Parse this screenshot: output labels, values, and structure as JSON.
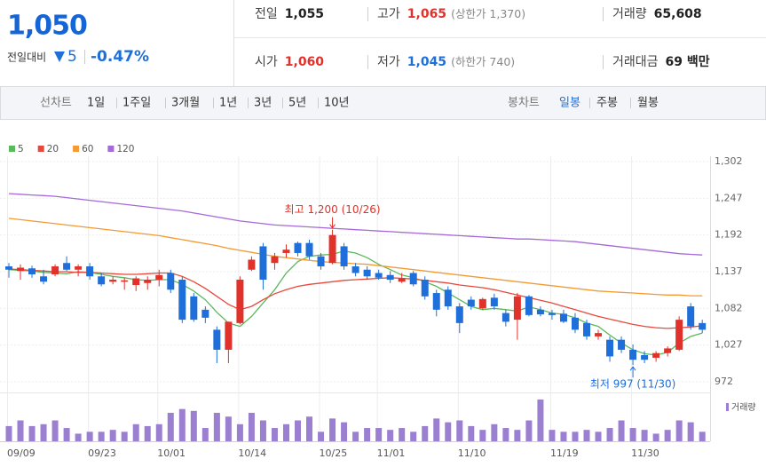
{
  "header": {
    "price": "1,050",
    "change_label": "전일대비",
    "change": "5",
    "change_pct": "-0.47%",
    "stats": [
      {
        "label": "전일",
        "value": "1,055",
        "color": "#222"
      },
      {
        "label": "고가",
        "value": "1,065",
        "note": "(상한가 1,370)",
        "color": "#e0322b"
      },
      {
        "label": "거래량",
        "value": "65,608",
        "color": "#222"
      },
      {
        "label": "시가",
        "value": "1,060",
        "color": "#e0322b"
      },
      {
        "label": "저가",
        "value": "1,045",
        "note": "(하한가 740)",
        "color": "#1e6fd9"
      },
      {
        "label": "거래대금",
        "value": "69 백만",
        "color": "#222"
      }
    ]
  },
  "toolbar": {
    "line_chart": "선차트",
    "line_periods": [
      "1일",
      "1주일",
      "3개월",
      "1년",
      "3년",
      "5년",
      "10년"
    ],
    "candle_chart": "봉차트",
    "candle_periods": [
      "일봉",
      "주봉",
      "월봉"
    ],
    "selected": 0
  },
  "chart_data": {
    "type": "candlestick",
    "categories": [
      "09/09",
      null,
      null,
      null,
      null,
      null,
      null,
      "09/23",
      null,
      null,
      null,
      null,
      null,
      "10/01",
      null,
      null,
      null,
      null,
      null,
      null,
      "10/14",
      null,
      null,
      null,
      null,
      null,
      null,
      "10/25",
      null,
      null,
      null,
      null,
      "11/01",
      null,
      null,
      null,
      null,
      null,
      null,
      "11/10",
      null,
      null,
      null,
      null,
      null,
      null,
      null,
      "11/19",
      null,
      null,
      null,
      null,
      null,
      null,
      "11/30",
      null,
      null,
      null,
      null,
      null,
      null
    ],
    "open": [
      1145,
      1138,
      1142,
      1130,
      1133,
      1150,
      1140,
      1145,
      1130,
      1122,
      1122,
      1117,
      1120,
      1125,
      1135,
      1125,
      1100,
      1080,
      1050,
      1020,
      1060,
      1140,
      1175,
      1150,
      1165,
      1180,
      1180,
      1160,
      1150,
      1175,
      1145,
      1140,
      1135,
      1132,
      1122,
      1135,
      1125,
      1105,
      1110,
      1085,
      1095,
      1082,
      1098,
      1075,
      1065,
      1100,
      1080,
      1075,
      1074,
      1068,
      1060,
      1040,
      1035,
      1035,
      1020,
      1012,
      1008,
      1015,
      1020,
      1085,
      1060
    ],
    "high": [
      1150,
      1148,
      1146,
      1140,
      1148,
      1160,
      1148,
      1150,
      1135,
      1130,
      1128,
      1130,
      1130,
      1140,
      1140,
      1130,
      1105,
      1085,
      1055,
      1062,
      1130,
      1160,
      1180,
      1165,
      1178,
      1182,
      1185,
      1165,
      1200,
      1180,
      1150,
      1145,
      1140,
      1138,
      1135,
      1138,
      1130,
      1110,
      1115,
      1090,
      1100,
      1098,
      1104,
      1080,
      1105,
      1102,
      1085,
      1080,
      1080,
      1075,
      1065,
      1050,
      1040,
      1040,
      1028,
      1018,
      1018,
      1025,
      1070,
      1090,
      1065
    ],
    "low": [
      1128,
      1125,
      1128,
      1118,
      1130,
      1138,
      1130,
      1125,
      1115,
      1118,
      1110,
      1108,
      1110,
      1115,
      1105,
      1060,
      1062,
      1060,
      1000,
      1000,
      1058,
      1138,
      1110,
      1140,
      1158,
      1160,
      1155,
      1140,
      1148,
      1140,
      1130,
      1125,
      1125,
      1120,
      1120,
      1115,
      1095,
      1070,
      1080,
      1045,
      1080,
      1080,
      1080,
      1055,
      1035,
      1070,
      1070,
      1065,
      1060,
      1045,
      1035,
      1035,
      1002,
      1015,
      997,
      1000,
      1002,
      1010,
      1018,
      1050,
      1045
    ],
    "close": [
      1140,
      1143,
      1133,
      1122,
      1145,
      1140,
      1145,
      1130,
      1118,
      1125,
      1124,
      1127,
      1125,
      1132,
      1110,
      1065,
      1065,
      1068,
      1020,
      1062,
      1125,
      1155,
      1125,
      1160,
      1170,
      1165,
      1160,
      1145,
      1192,
      1145,
      1135,
      1130,
      1128,
      1125,
      1127,
      1118,
      1100,
      1080,
      1085,
      1060,
      1085,
      1096,
      1085,
      1062,
      1100,
      1072,
      1073,
      1072,
      1062,
      1050,
      1040,
      1045,
      1010,
      1020,
      1005,
      1005,
      1015,
      1022,
      1065,
      1055,
      1050
    ],
    "up_color": "#e0322b",
    "down_color": "#1e6fd9",
    "series": [
      {
        "name": "5",
        "color": "#5cb85c",
        "values": [
          1140,
          1139,
          1138,
          1136,
          1135,
          1134,
          1137,
          1136,
          1133,
          1130,
          1128,
          1125,
          1124,
          1125,
          1125,
          1118,
          1108,
          1095,
          1076,
          1060,
          1055,
          1070,
          1090,
          1110,
          1135,
          1152,
          1160,
          1162,
          1163,
          1168,
          1165,
          1158,
          1148,
          1140,
          1132,
          1128,
          1122,
          1115,
          1105,
          1095,
          1085,
          1080,
          1082,
          1080,
          1078,
          1084,
          1080,
          1075,
          1073,
          1068,
          1060,
          1055,
          1042,
          1030,
          1020,
          1014,
          1012,
          1016,
          1030,
          1040,
          1045
        ]
      },
      {
        "name": "20",
        "color": "#e8483c",
        "values": [
          1141,
          1140,
          1139,
          1138,
          1137,
          1137,
          1136,
          1136,
          1135,
          1134,
          1133,
          1133,
          1134,
          1135,
          1135,
          1130,
          1122,
          1112,
          1100,
          1088,
          1080,
          1085,
          1095,
          1104,
          1110,
          1115,
          1118,
          1120,
          1122,
          1124,
          1125,
          1126,
          1127,
          1128,
          1127,
          1126,
          1124,
          1122,
          1120,
          1117,
          1115,
          1113,
          1110,
          1106,
          1102,
          1098,
          1094,
          1090,
          1085,
          1080,
          1075,
          1070,
          1066,
          1062,
          1058,
          1055,
          1053,
          1052,
          1053,
          1054,
          1056
        ]
      },
      {
        "name": "60",
        "color": "#f39a34",
        "values": [
          1217,
          1215,
          1213,
          1211,
          1209,
          1207,
          1205,
          1203,
          1201,
          1199,
          1197,
          1195,
          1193,
          1191,
          1188,
          1185,
          1182,
          1179,
          1176,
          1172,
          1169,
          1166,
          1163,
          1160,
          1158,
          1156,
          1154,
          1152,
          1151,
          1150,
          1149,
          1148,
          1146,
          1144,
          1142,
          1140,
          1138,
          1136,
          1134,
          1132,
          1130,
          1128,
          1126,
          1124,
          1122,
          1120,
          1118,
          1116,
          1114,
          1112,
          1110,
          1108,
          1107,
          1106,
          1105,
          1104,
          1103,
          1102,
          1102,
          1101,
          1101
        ]
      },
      {
        "name": "120",
        "color": "#a569d8",
        "values": [
          1254,
          1253,
          1252,
          1251,
          1250,
          1248,
          1246,
          1244,
          1242,
          1240,
          1238,
          1236,
          1234,
          1232,
          1230,
          1228,
          1225,
          1222,
          1219,
          1216,
          1213,
          1211,
          1209,
          1207,
          1206,
          1205,
          1204,
          1203,
          1202,
          1201,
          1200,
          1199,
          1198,
          1197,
          1196,
          1195,
          1194,
          1193,
          1192,
          1191,
          1190,
          1189,
          1188,
          1187,
          1186,
          1186,
          1185,
          1184,
          1183,
          1182,
          1180,
          1178,
          1176,
          1174,
          1172,
          1170,
          1168,
          1166,
          1164,
          1163,
          1162
        ]
      }
    ],
    "volume": {
      "name": "거래량",
      "color": "#9b7fd0",
      "values": [
        16,
        22,
        16,
        18,
        22,
        14,
        8,
        10,
        10,
        12,
        10,
        18,
        16,
        18,
        30,
        34,
        32,
        14,
        30,
        26,
        18,
        30,
        22,
        14,
        18,
        22,
        26,
        10,
        24,
        20,
        10,
        14,
        14,
        12,
        14,
        10,
        16,
        24,
        20,
        22,
        16,
        12,
        18,
        14,
        12,
        22,
        44,
        12,
        10,
        10,
        12,
        10,
        14,
        22,
        14,
        12,
        8,
        12,
        22,
        20,
        10
      ]
    },
    "ylim": [
      972,
      1302
    ],
    "yticks": [
      {
        "value": 1302,
        "label": "1,302"
      },
      {
        "value": 1247,
        "label": "1,247"
      },
      {
        "value": 1192,
        "label": "1,192"
      },
      {
        "value": 1137,
        "label": "1,137"
      },
      {
        "value": 1082,
        "label": "1,082"
      },
      {
        "value": 1027,
        "label": "1,027"
      },
      972
    ],
    "grid": true,
    "annotations": [
      {
        "text": "최고 1,200 (10/26)",
        "at": "high",
        "color": "#e0322b"
      },
      {
        "text": "최저 997 (11/30)",
        "at": "low",
        "color": "#1e6fd9"
      }
    ]
  }
}
